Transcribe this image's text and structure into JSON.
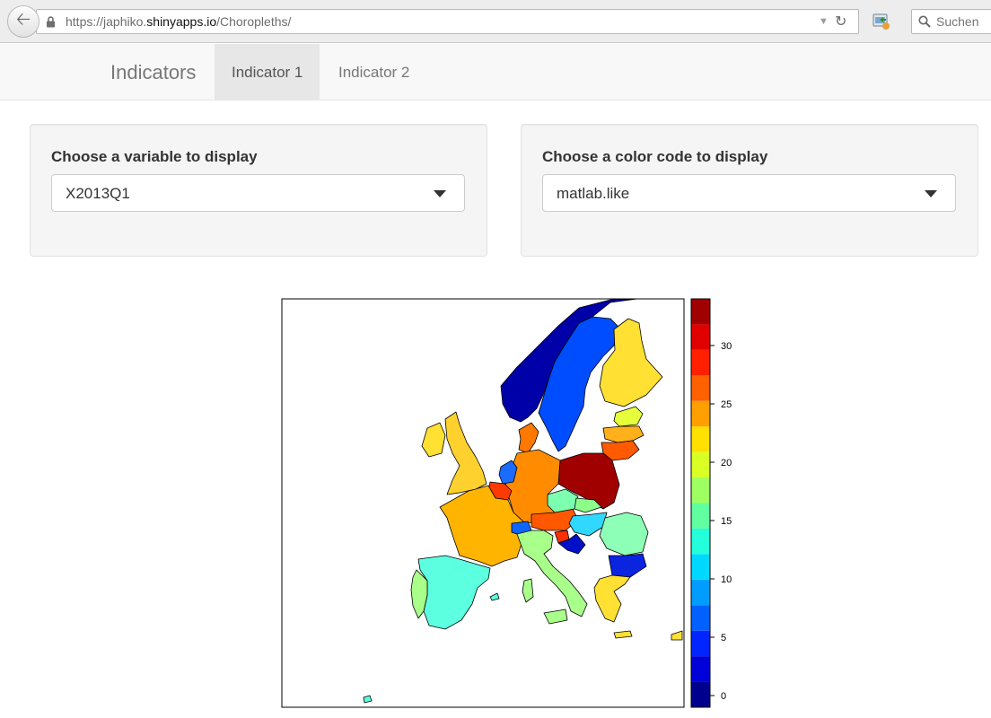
{
  "browser": {
    "url_prefix": "https://japhiko.",
    "url_host": "shinyapps.io",
    "url_path": "/Choropleths/",
    "search_placeholder": "Suchen"
  },
  "navbar": {
    "brand": "Indicators",
    "tabs": [
      {
        "label": "Indicator 1",
        "active": true
      },
      {
        "label": "Indicator 2",
        "active": false
      }
    ]
  },
  "controls": {
    "variable": {
      "label": "Choose a variable to display",
      "value": "X2013Q1"
    },
    "color_code": {
      "label": "Choose a color code to display",
      "value": "matlab.like"
    }
  },
  "chart_data": {
    "type": "heatmap",
    "colorbar": {
      "ticks": [
        "0",
        "5",
        "10",
        "15",
        "20",
        "25",
        "30"
      ],
      "range": [
        -1,
        34
      ],
      "colors": [
        "#00008f",
        "#0000d9",
        "#0025ff",
        "#0061ff",
        "#009dff",
        "#00d9ff",
        "#24ffdb",
        "#61ffa0",
        "#9dff61",
        "#d9ff25",
        "#ffe000",
        "#ffa000",
        "#ff6000",
        "#ff2000",
        "#e00000",
        "#a00000"
      ]
    }
  }
}
